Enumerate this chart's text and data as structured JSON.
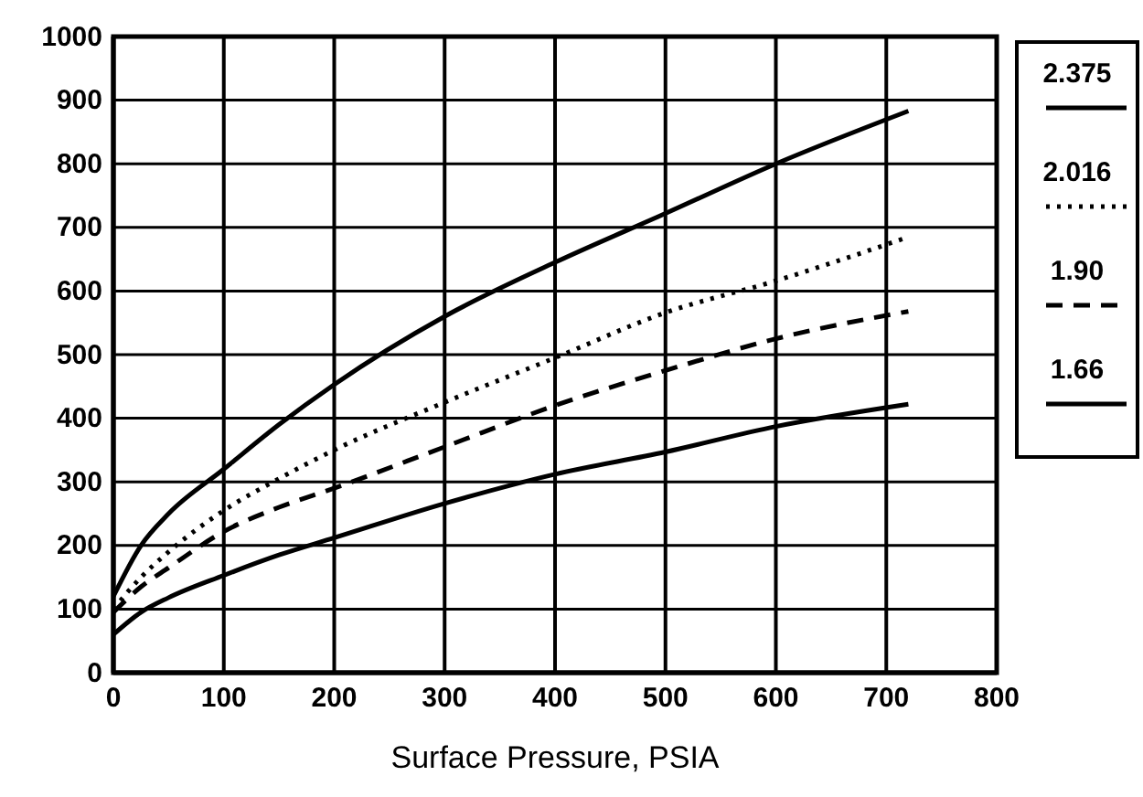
{
  "chart_data": {
    "type": "line",
    "xlabel": "Surface Pressure, PSIA",
    "x": [
      0,
      25,
      50,
      100,
      150,
      200,
      300,
      400,
      500,
      600,
      720
    ],
    "xlim": [
      0,
      800
    ],
    "xticks": [
      0,
      100,
      200,
      300,
      400,
      500,
      600,
      700,
      800
    ],
    "ylim": [
      0,
      1000
    ],
    "yticks": [
      0,
      100,
      200,
      300,
      400,
      500,
      600,
      700,
      800,
      900,
      1000
    ],
    "grid": true,
    "legend": "right",
    "marker": "none",
    "series": [
      {
        "name": "2.375",
        "color": "#000000",
        "line_style": "solid",
        "values": [
          120,
          200,
          250,
          320,
          390,
          453,
          560,
          645,
          722,
          800,
          883
        ]
      },
      {
        "name": "2.016",
        "color": "#000000",
        "line_style": "dotted",
        "values": [
          100,
          150,
          190,
          255,
          305,
          350,
          425,
          495,
          566,
          616,
          685
        ]
      },
      {
        "name": "1.90",
        "color": "#000000",
        "line_style": "dashed",
        "values": [
          95,
          135,
          165,
          222,
          260,
          290,
          355,
          420,
          475,
          525,
          568
        ]
      },
      {
        "name": "1.66",
        "color": "#000000",
        "line_style": "solid",
        "values": [
          60,
          95,
          118,
          153,
          185,
          212,
          266,
          312,
          347,
          387,
          422
        ]
      }
    ]
  }
}
